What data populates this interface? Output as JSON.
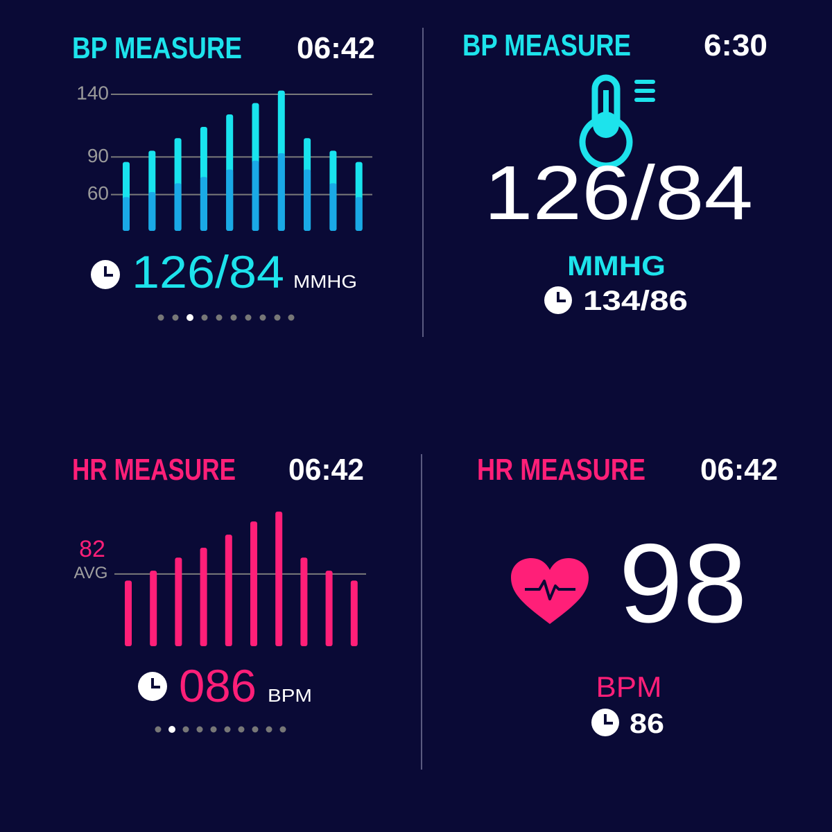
{
  "chart_data": [
    {
      "type": "bar",
      "categories": [
        null,
        null,
        null,
        null,
        null,
        null,
        null,
        null,
        null,
        null
      ],
      "series": [
        {
          "color": "#19e3ee",
          "values": [
            86,
            95,
            105,
            114,
            124,
            133,
            143,
            105,
            95,
            86
          ]
        },
        {
          "color": "#1aa9e6",
          "values": [
            58,
            62,
            69,
            74,
            80,
            87,
            93,
            80,
            69,
            58
          ]
        }
      ],
      "ylim": [
        31,
        145
      ],
      "yticks": [
        60,
        90,
        140
      ],
      "grid": true
    },
    {
      "type": "bar",
      "categories": [
        null,
        null,
        null,
        null,
        null,
        null,
        null,
        null,
        null,
        null
      ],
      "series": [
        {
          "color": "#ff1f78",
          "values": [
            80,
            83,
            87,
            90,
            94,
            98,
            101,
            87,
            83,
            80
          ]
        }
      ],
      "ylim": [
        60,
        105
      ],
      "yticks": [
        82
      ],
      "grid": true
    }
  ],
  "bp_chart_panel": {
    "title": "BP MEASURE",
    "time": "06:42",
    "reading": "126/84",
    "unit": "MMHG"
  },
  "bp_reading_panel": {
    "title": "BP MEASURE",
    "time": "6:30",
    "reading": "126/84",
    "unit": "MMHG",
    "last": "134/86"
  },
  "hr_chart_panel": {
    "title": "HR MEASURE",
    "time": "06:42",
    "reading": "086",
    "unit": "BPM",
    "avg_label": "AVG"
  },
  "hr_reading_panel": {
    "title": "HR MEASURE",
    "time": "06:42",
    "reading": "98",
    "unit": "BPM",
    "last": "86"
  }
}
